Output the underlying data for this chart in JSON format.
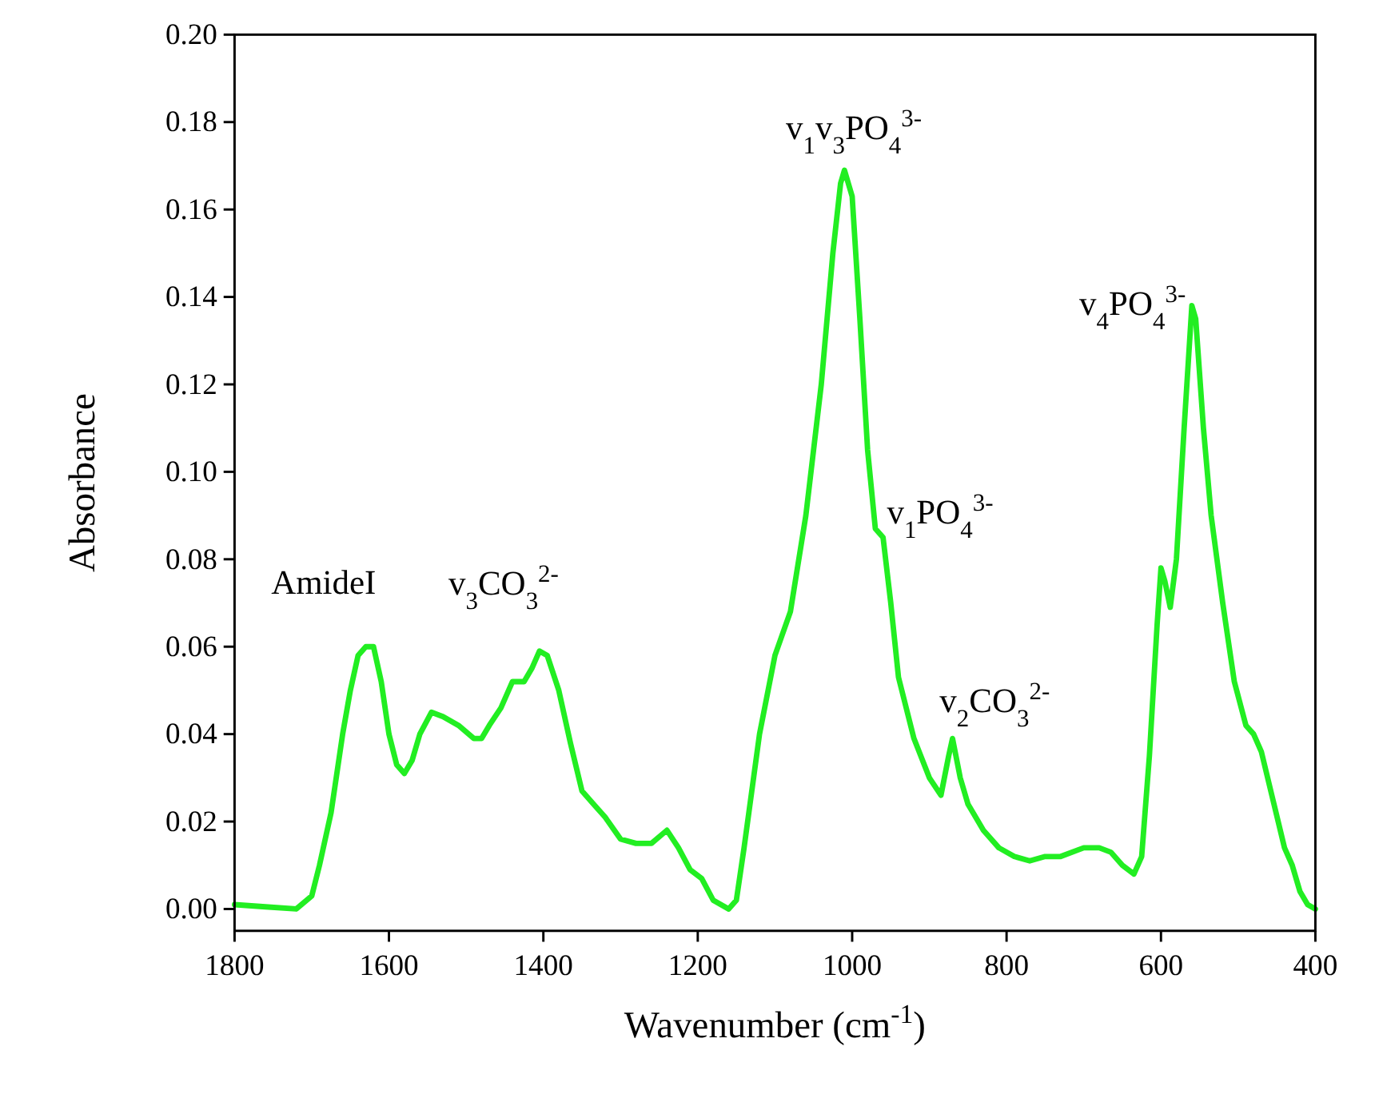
{
  "chart_data": {
    "type": "line",
    "xlabel": "Wavenumber (cm$^{-1}$)",
    "ylabel": "Absorbance",
    "xlim": [
      1800,
      400
    ],
    "ylim": [
      -0.005,
      0.2
    ],
    "xticks": [
      1800,
      1600,
      1400,
      1200,
      1000,
      800,
      600,
      400
    ],
    "yticks": [
      {
        "value": 0,
        "label": "0.00"
      },
      {
        "value": 0.02,
        "label": "0.02"
      },
      {
        "value": 0.04,
        "label": "0.04"
      },
      {
        "value": 0.06,
        "label": "0.06"
      },
      {
        "value": 0.08,
        "label": "0.08"
      },
      {
        "value": 0.1,
        "label": "0.10"
      },
      {
        "value": 0.12,
        "label": "0.12"
      },
      {
        "value": 0.14,
        "label": "0.14"
      },
      {
        "value": 0.16,
        "label": "0.16"
      },
      {
        "value": 0.18,
        "label": "0.18"
      },
      {
        "value": 0.2,
        "label": "0.20"
      }
    ],
    "grid": false,
    "line_style": "solid",
    "marker": "none",
    "series": [
      {
        "color": "#22ee22",
        "x": [
          1800,
          1760,
          1720,
          1700,
          1690,
          1675,
          1660,
          1650,
          1640,
          1630,
          1620,
          1610,
          1600,
          1590,
          1580,
          1570,
          1560,
          1545,
          1530,
          1510,
          1490,
          1480,
          1470,
          1455,
          1440,
          1425,
          1415,
          1405,
          1395,
          1380,
          1365,
          1350,
          1335,
          1320,
          1300,
          1280,
          1260,
          1240,
          1225,
          1210,
          1195,
          1180,
          1160,
          1150,
          1140,
          1120,
          1100,
          1080,
          1060,
          1040,
          1025,
          1015,
          1010,
          1000,
          990,
          980,
          970,
          960,
          950,
          940,
          920,
          900,
          885,
          875,
          870,
          860,
          850,
          830,
          810,
          790,
          770,
          750,
          730,
          700,
          680,
          665,
          650,
          635,
          625,
          615,
          605,
          600,
          595,
          588,
          580,
          570,
          560,
          555,
          545,
          535,
          520,
          505,
          490,
          480,
          470,
          455,
          440,
          430,
          420,
          410,
          400
        ],
        "values": [
          0.001,
          0.0005,
          0,
          0.003,
          0.01,
          0.022,
          0.04,
          0.05,
          0.058,
          0.06,
          0.06,
          0.052,
          0.04,
          0.033,
          0.031,
          0.034,
          0.04,
          0.045,
          0.044,
          0.042,
          0.039,
          0.039,
          0.042,
          0.046,
          0.052,
          0.052,
          0.055,
          0.059,
          0.058,
          0.05,
          0.038,
          0.027,
          0.024,
          0.021,
          0.016,
          0.015,
          0.015,
          0.018,
          0.014,
          0.009,
          0.007,
          0.002,
          0,
          0.002,
          0.014,
          0.04,
          0.058,
          0.068,
          0.09,
          0.12,
          0.15,
          0.166,
          0.169,
          0.163,
          0.135,
          0.105,
          0.087,
          0.085,
          0.07,
          0.053,
          0.039,
          0.03,
          0.026,
          0.035,
          0.039,
          0.03,
          0.024,
          0.018,
          0.014,
          0.012,
          0.011,
          0.012,
          0.012,
          0.014,
          0.014,
          0.013,
          0.01,
          0.008,
          0.012,
          0.035,
          0.065,
          0.078,
          0.075,
          0.069,
          0.08,
          0.11,
          0.138,
          0.135,
          0.11,
          0.09,
          0.07,
          0.052,
          0.042,
          0.04,
          0.036,
          0.025,
          0.014,
          0.01,
          0.004,
          0.001,
          0
        ]
      }
    ],
    "annotations": [
      {
        "text": "AmideI",
        "x": 1630,
        "y": 0.06
      },
      {
        "text": "v$_{3}$CO$_{3}$$^{2-}$",
        "x": 1405,
        "y": 0.059
      },
      {
        "text": "v$_{1}$v$_{3}$PO$_{4}$$^{3-}$",
        "x": 1010,
        "y": 0.169
      },
      {
        "text": "v$_{1}$PO$_{4}$$^{3-}$",
        "x": 965,
        "y": 0.086
      },
      {
        "text": "v$_{2}$CO$_{3}$$^{2-}$",
        "x": 870,
        "y": 0.039
      },
      {
        "text": "v$_{4}$PO$_{4}$$^{3-}$",
        "x": 560,
        "y": 0.138
      }
    ]
  }
}
